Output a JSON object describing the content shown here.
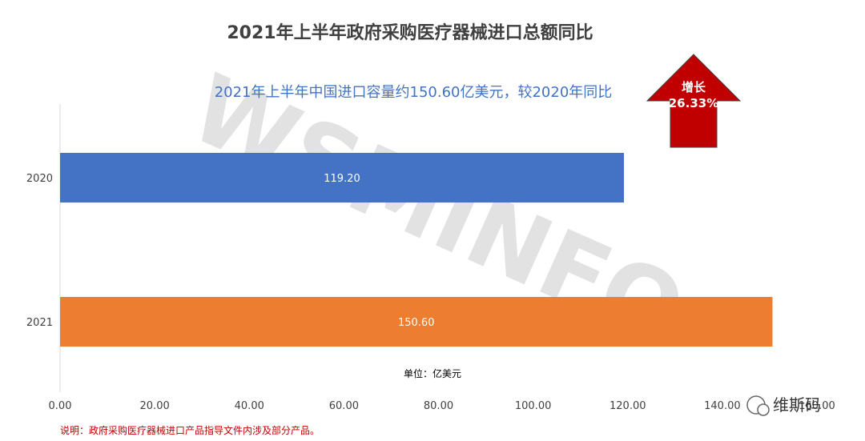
{
  "chart_data": {
    "type": "bar",
    "orientation": "horizontal",
    "title": "2021年上半年政府采购医疗器械进口总额同比",
    "subtitle": "2021年上半年中国进口容量约150.60亿美元，较2020年同比",
    "categories": [
      "2020",
      "2021"
    ],
    "values": [
      119.2,
      150.6
    ],
    "data_labels": [
      "119.20",
      "150.60"
    ],
    "bar_colors": [
      "#4472c4",
      "#ed7d31"
    ],
    "xlim": [
      0,
      160
    ],
    "x_ticks": [
      0,
      20,
      40,
      60,
      80,
      100,
      120,
      140,
      160
    ],
    "x_tick_labels": [
      "0.00",
      "20.00",
      "40.00",
      "60.00",
      "80.00",
      "100.00",
      "120.00",
      "140.00",
      "160.00"
    ],
    "unit_label": "单位：亿美元",
    "growth_callout": {
      "line1": "增长",
      "line2": "26.33%",
      "color": "#c00000"
    },
    "note": "说明：政府采购医疗器械进口产品指导文件内涉及部分产品。",
    "watermark": "WSMINFO",
    "corner_brand": "维斯码"
  }
}
